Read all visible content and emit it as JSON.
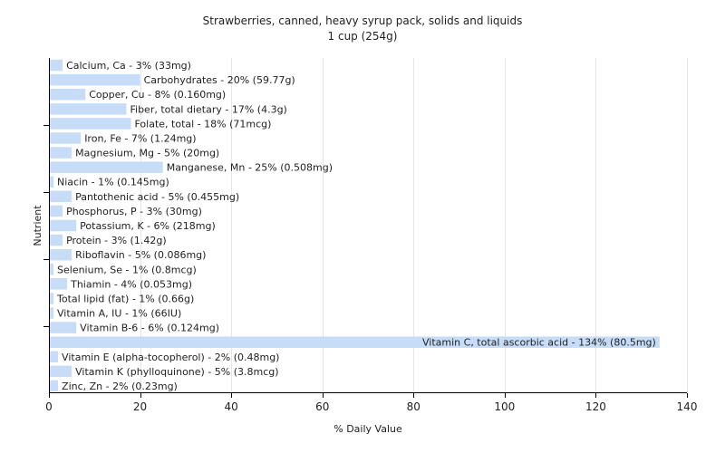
{
  "chart_data": {
    "type": "bar",
    "orientation": "horizontal",
    "title": "Strawberries, canned, heavy syrup pack, solids and liquids",
    "subtitle": "1 cup (254g)",
    "xlabel": "% Daily Value",
    "ylabel": "Nutrient",
    "xlim": [
      0,
      140
    ],
    "xticks": [
      "0",
      "20",
      "40",
      "60",
      "80",
      "100",
      "120",
      "140"
    ],
    "grid": true,
    "bar_color": "#c6dcf7",
    "categories": [
      "Calcium, Ca - 3% (33mg)",
      "Carbohydrates - 20% (59.77g)",
      "Copper, Cu - 8% (0.160mg)",
      "Fiber, total dietary - 17% (4.3g)",
      "Folate, total - 18% (71mcg)",
      "Iron, Fe - 7% (1.24mg)",
      "Magnesium, Mg - 5% (20mg)",
      "Manganese, Mn - 25% (0.508mg)",
      "Niacin - 1% (0.145mg)",
      "Pantothenic acid - 5% (0.455mg)",
      "Phosphorus, P - 3% (30mg)",
      "Potassium, K - 6% (218mg)",
      "Protein - 3% (1.42g)",
      "Riboflavin - 5% (0.086mg)",
      "Selenium, Se - 1% (0.8mcg)",
      "Thiamin - 4% (0.053mg)",
      "Total lipid (fat) - 1% (0.66g)",
      "Vitamin A, IU - 1% (66IU)",
      "Vitamin B-6 - 6% (0.124mg)",
      "Vitamin C, total ascorbic acid - 134% (80.5mg)",
      "Vitamin E (alpha-tocopherol) - 2% (0.48mg)",
      "Vitamin K (phylloquinone) - 5% (3.8mcg)",
      "Zinc, Zn - 2% (0.23mg)"
    ],
    "values": [
      3,
      20,
      8,
      17,
      18,
      7,
      5,
      25,
      1,
      5,
      3,
      6,
      3,
      5,
      1,
      4,
      1,
      1,
      6,
      134,
      2,
      5,
      2
    ]
  }
}
